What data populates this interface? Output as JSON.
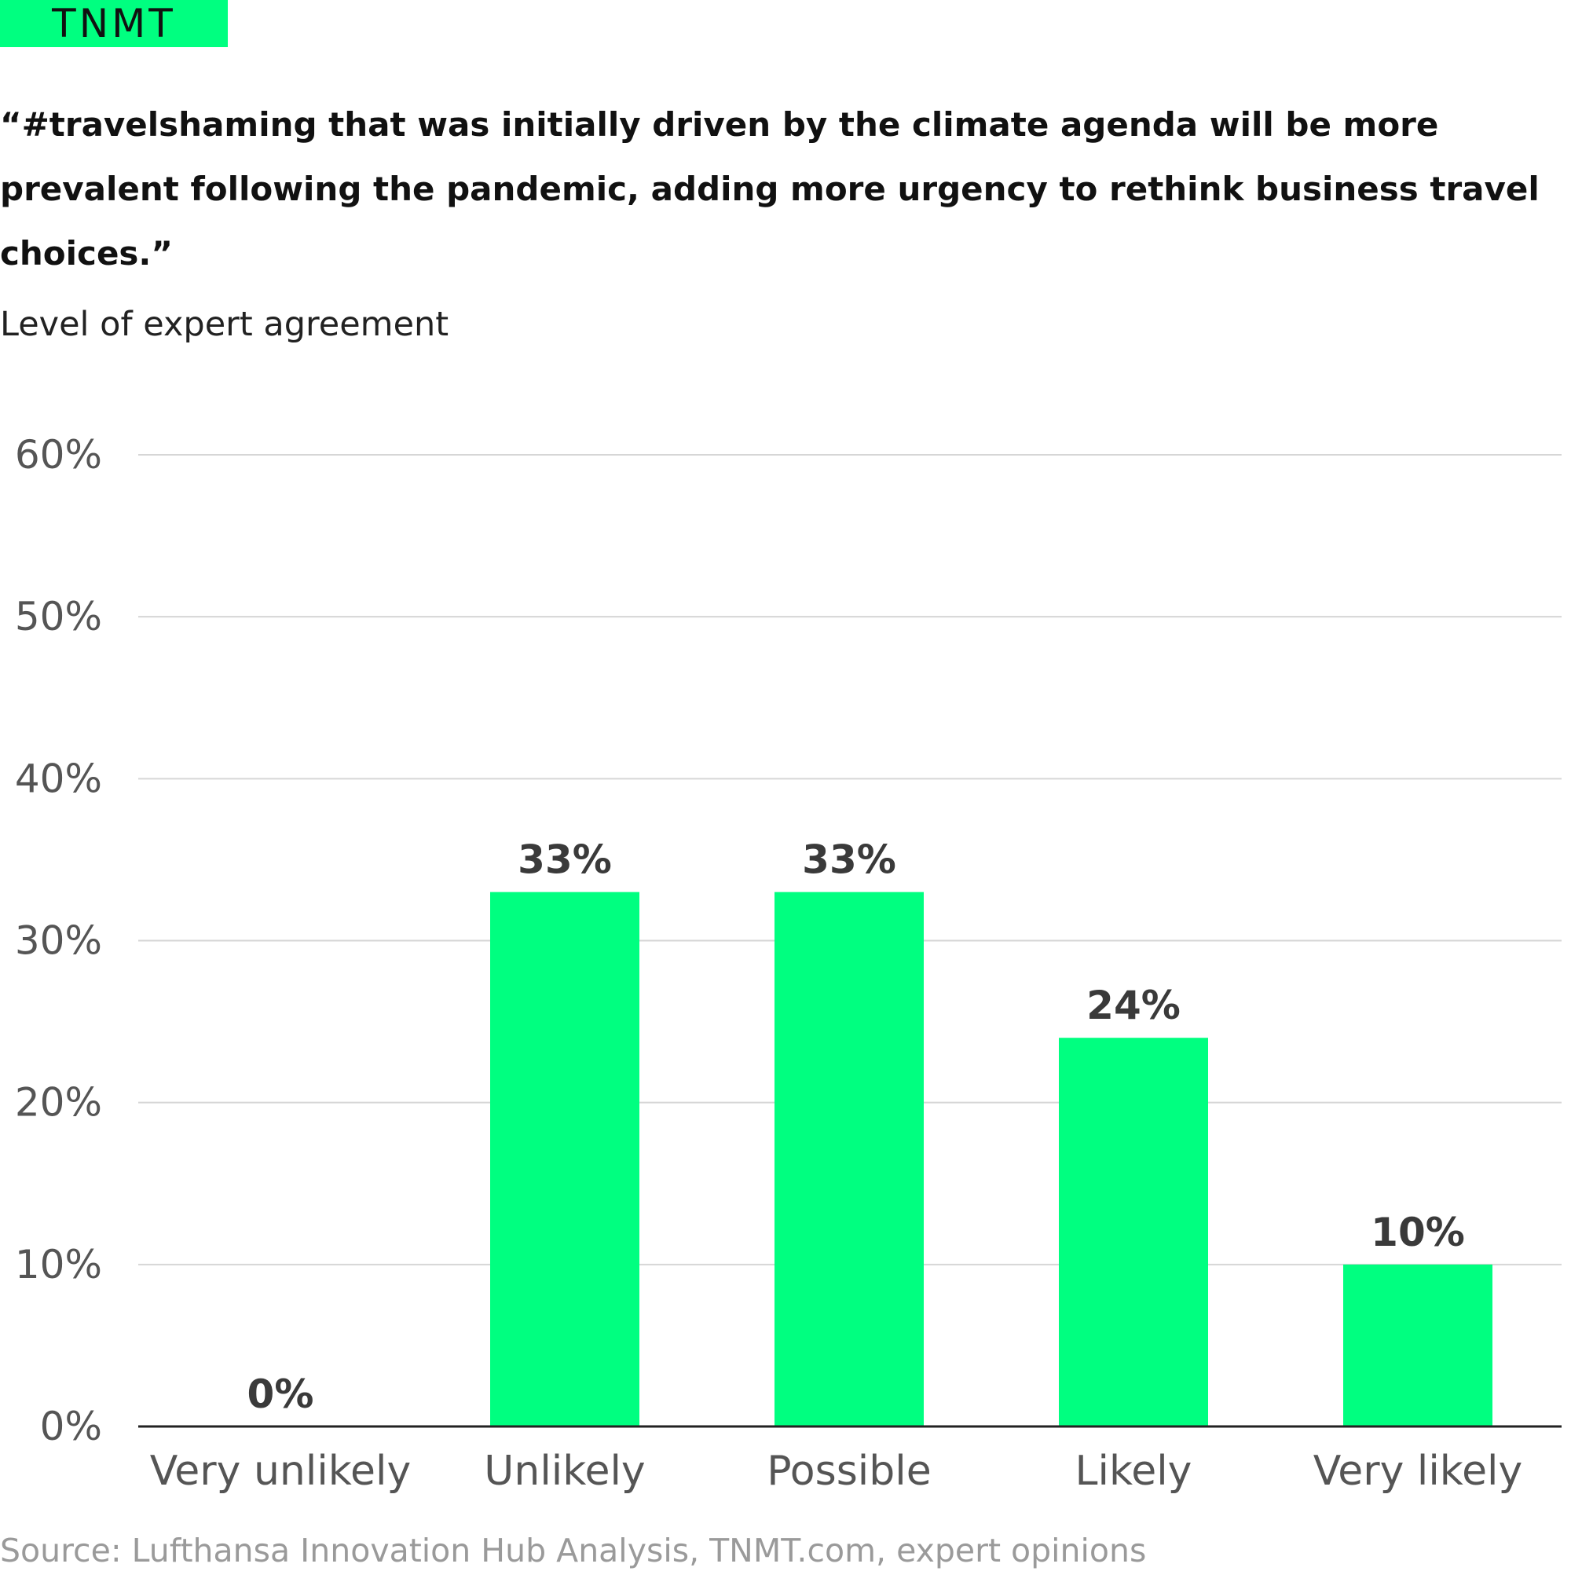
{
  "brand": {
    "logo": "TNMT",
    "accent": "#00ff80"
  },
  "headline": "“#travelshaming that was initially driven by the climate agenda will be more prevalent following the pandemic, adding more urgency to rethink business travel choices.”",
  "source": "Source: Lufthansa Innovation Hub Analysis, TNMT.com, expert opinions",
  "chart_data": {
    "type": "bar",
    "title": "",
    "subtitle": "Level of expert agreement",
    "xlabel": "",
    "ylabel": "",
    "categories": [
      "Very unlikely",
      "Unlikely",
      "Possible",
      "Likely",
      "Very likely"
    ],
    "values": [
      0,
      33,
      33,
      24,
      10
    ],
    "data_labels": [
      "0%",
      "33%",
      "33%",
      "24%",
      "10%"
    ],
    "ylim": [
      0,
      60
    ],
    "yticks": [
      0,
      10,
      20,
      30,
      40,
      50,
      60
    ],
    "ytick_labels": [
      "0%",
      "10%",
      "20%",
      "30%",
      "40%",
      "50%",
      "60%"
    ],
    "grid": true,
    "bar_color": "#00ff80",
    "grid_color": "#d6d6d6",
    "axis_color": "#222222"
  }
}
